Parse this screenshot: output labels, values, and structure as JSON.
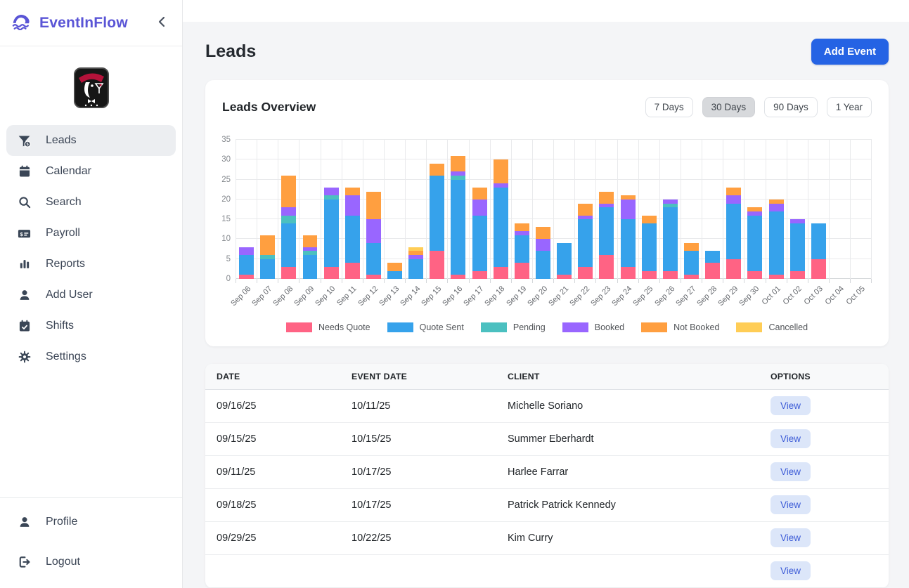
{
  "sidebar": {
    "brand": "EventInFlow",
    "items": [
      {
        "icon": "funnel-dollar",
        "label": "Leads",
        "active": true
      },
      {
        "icon": "calendar",
        "label": "Calendar",
        "active": false
      },
      {
        "icon": "search",
        "label": "Search",
        "active": false
      },
      {
        "icon": "money-check",
        "label": "Payroll",
        "active": false
      },
      {
        "icon": "bar-chart",
        "label": "Reports",
        "active": false
      },
      {
        "icon": "user",
        "label": "Add User",
        "active": false
      },
      {
        "icon": "calendar-check",
        "label": "Shifts",
        "active": false
      },
      {
        "icon": "gear",
        "label": "Settings",
        "active": false
      }
    ],
    "footer_items": [
      {
        "icon": "user",
        "label": "Profile",
        "active": false
      },
      {
        "icon": "logout",
        "label": "Logout",
        "active": false
      }
    ]
  },
  "page": {
    "title": "Leads",
    "add_event_label": "Add Event"
  },
  "overview_card": {
    "title": "Leads Overview",
    "ranges": [
      {
        "label": "7 Days",
        "active": false
      },
      {
        "label": "30 Days",
        "active": true
      },
      {
        "label": "90 Days",
        "active": false
      },
      {
        "label": "1 Year",
        "active": false
      }
    ]
  },
  "chart_data": {
    "type": "bar",
    "stacked": true,
    "title": "Leads Overview",
    "xlabel": "",
    "ylabel": "",
    "ylim": [
      0,
      35
    ],
    "yticks": [
      0,
      5,
      10,
      15,
      20,
      25,
      30,
      35
    ],
    "grid": true,
    "legend_position": "bottom",
    "categories": [
      "Sep 06",
      "Sep 07",
      "Sep 08",
      "Sep 09",
      "Sep 10",
      "Sep 11",
      "Sep 12",
      "Sep 13",
      "Sep 14",
      "Sep 15",
      "Sep 16",
      "Sep 17",
      "Sep 18",
      "Sep 19",
      "Sep 20",
      "Sep 21",
      "Sep 22",
      "Sep 23",
      "Sep 24",
      "Sep 25",
      "Sep 26",
      "Sep 27",
      "Sep 28",
      "Sep 29",
      "Sep 30",
      "Oct 01",
      "Oct 02",
      "Oct 03",
      "Oct 04",
      "Oct 05"
    ],
    "series": [
      {
        "name": "Needs Quote",
        "color": "#FF6384",
        "values": [
          1,
          0,
          3,
          0,
          3,
          4,
          1,
          0,
          0,
          7,
          1,
          2,
          3,
          4,
          0,
          1,
          3,
          6,
          3,
          2,
          2,
          1,
          4,
          5,
          2,
          1,
          2,
          5,
          0,
          0
        ]
      },
      {
        "name": "Quote Sent",
        "color": "#36A2EB",
        "values": [
          5,
          5,
          11,
          6,
          17,
          12,
          8,
          2,
          5,
          19,
          24,
          14,
          20,
          7,
          7,
          8,
          12,
          12,
          12,
          12,
          16,
          6,
          3,
          14,
          14,
          16,
          12,
          9,
          0,
          0
        ]
      },
      {
        "name": "Pending",
        "color": "#4BC0C0",
        "values": [
          0,
          1,
          2,
          1,
          1,
          0,
          0,
          0,
          0,
          0,
          1,
          0,
          0,
          0,
          0,
          0,
          0,
          0,
          0,
          0,
          1,
          0,
          0,
          0,
          0,
          0,
          0,
          0,
          0,
          0
        ]
      },
      {
        "name": "Booked",
        "color": "#9966FF",
        "values": [
          2,
          0,
          2,
          1,
          2,
          5,
          6,
          0,
          1,
          0,
          1,
          4,
          1,
          1,
          3,
          0,
          1,
          1,
          5,
          0,
          1,
          0,
          0,
          2,
          1,
          2,
          1,
          0,
          0,
          0
        ]
      },
      {
        "name": "Not Booked",
        "color": "#FF9F40",
        "values": [
          0,
          5,
          8,
          3,
          0,
          2,
          7,
          2,
          1,
          3,
          4,
          3,
          6,
          2,
          3,
          0,
          3,
          3,
          1,
          2,
          0,
          2,
          0,
          2,
          1,
          1,
          0,
          0,
          0,
          0
        ]
      },
      {
        "name": "Cancelled",
        "color": "#FFCD56",
        "values": [
          0,
          0,
          0,
          0,
          0,
          0,
          0,
          0,
          1,
          0,
          0,
          0,
          0,
          0,
          0,
          0,
          0,
          0,
          0,
          0,
          0,
          0,
          0,
          0,
          0,
          0,
          0,
          0,
          0,
          0
        ]
      }
    ]
  },
  "table": {
    "headers": [
      "DATE",
      "EVENT DATE",
      "CLIENT",
      "OPTIONS"
    ],
    "view_label": "View",
    "rows": [
      {
        "date": "09/16/25",
        "event_date": "10/11/25",
        "client": "Michelle Soriano"
      },
      {
        "date": "09/15/25",
        "event_date": "10/15/25",
        "client": "Summer Eberhardt"
      },
      {
        "date": "09/11/25",
        "event_date": "10/17/25",
        "client": "Harlee Farrar"
      },
      {
        "date": "09/18/25",
        "event_date": "10/17/25",
        "client": "Patrick Patrick Kennedy"
      },
      {
        "date": "09/29/25",
        "event_date": "10/22/25",
        "client": "Kim Curry"
      }
    ],
    "extra_partial_row": true
  }
}
